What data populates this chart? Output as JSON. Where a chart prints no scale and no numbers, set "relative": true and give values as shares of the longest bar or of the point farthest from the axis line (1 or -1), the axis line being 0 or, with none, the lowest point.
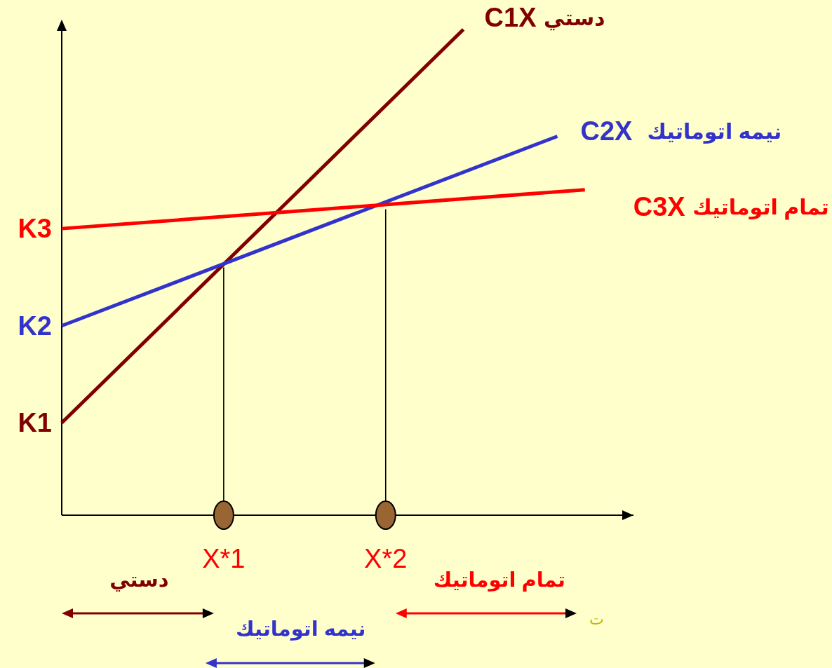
{
  "chart_data": {
    "type": "line",
    "relative": true,
    "xlim": [
      0,
      3.53
    ],
    "xticks": [
      {
        "value": 1,
        "label": "X*1"
      },
      {
        "value": 2,
        "label": "X*2"
      }
    ],
    "series": [
      {
        "name": "C1X دستي",
        "color": "#800000",
        "x": [
          0,
          2.48
        ],
        "values": [
          0.19,
          1
        ]
      },
      {
        "name": "C2X  نيمه اتوماتيك",
        "color": "#3333cc",
        "x": [
          0,
          3.06
        ],
        "values": [
          0.39,
          0.78
        ]
      },
      {
        "name": "C3X تمام اتوماتيك",
        "color": "#ff0000",
        "x": [
          0,
          3.23
        ],
        "values": [
          0.59,
          0.67
        ]
      },
      {
        "color": "#000000",
        "x": [
          1,
          1
        ],
        "values": [
          0,
          0.51
        ]
      },
      {
        "color": "#000000",
        "x": [
          2,
          2
        ],
        "values": [
          0,
          0.63
        ]
      },
      {
        "type": "scatter",
        "marker": "circle",
        "color": "#996633",
        "x": [
          1,
          2
        ],
        "values": [
          0,
          0
        ]
      }
    ],
    "annotations": [
      "K1",
      "K2",
      "K3",
      "دستي",
      "نيمه اتوماتيك",
      "تمام اتوماتيك",
      "ت"
    ]
  }
}
